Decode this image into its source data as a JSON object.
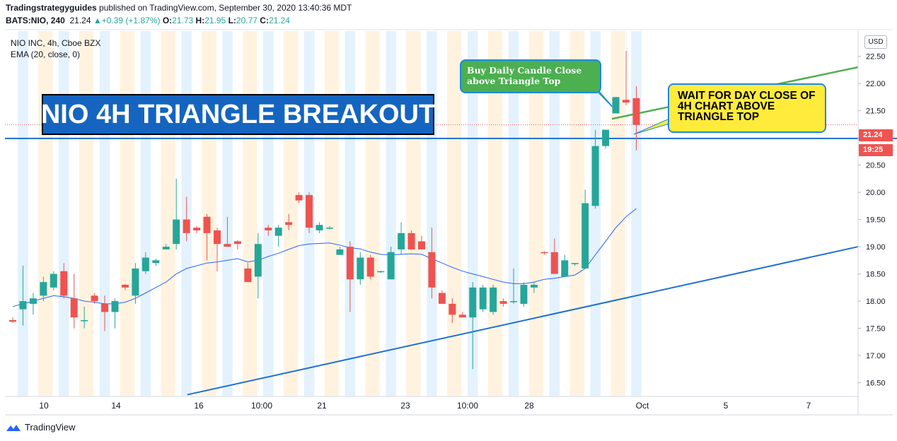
{
  "header": {
    "author": "Tradingstrategyguides",
    "published": "published on TradingView.com, September 30, 2020 13:40:36 MDT",
    "symbol": "BATS:NIO, 240",
    "last": "21.24",
    "change": "+0.39 (+1.87%)",
    "o_label": "O:",
    "o_value": "21.73",
    "h_label": "H:",
    "h_value": "21.95",
    "l_label": "L:",
    "l_value": "20.77",
    "c_label": "C:",
    "c_value": "21.24"
  },
  "legend": {
    "instrument": "NIO INC, 4h, Cboe BZX",
    "indicator": "EMA (20, close, 0)"
  },
  "annotations": {
    "title": "NIO 4H TRIANGLE BREAKOUT",
    "green_note": "Buy Daily Candle Close above Triangle Top",
    "yellow_note": "WAIT FOR DAY CLOSE OF 4H CHART ABOVE TRIANGLE TOP"
  },
  "axis": {
    "currency": "USD",
    "price_tag": "21.24",
    "time_tag": "19:25"
  },
  "footer": {
    "brand": "TradingView"
  },
  "colors": {
    "up": "#26a69a",
    "down": "#ef5350",
    "ema": "#2962ff",
    "trendline": "#1e6fd0",
    "green_line": "#4caf50",
    "session_blue": "#e3f2fd",
    "session_orange": "#fff3e0"
  },
  "chart_data": {
    "type": "candlestick",
    "y_ticks": [
      16.5,
      17.0,
      17.5,
      18.0,
      18.5,
      19.0,
      19.5,
      20.0,
      20.5,
      21.0,
      21.5,
      22.0,
      22.5
    ],
    "y_tick_labels": [
      "16.50",
      "17.00",
      "17.50",
      "18.00",
      "18.50",
      "19.00",
      "19.50",
      "20.00",
      "20.50",
      "21.00",
      "21.50",
      "22.00",
      "22.50"
    ],
    "ylim": [
      16.26,
      22.95
    ],
    "x_labels": [
      "10",
      "14",
      "16",
      "10:00",
      "21",
      "23",
      "10:00",
      "28",
      "Oct",
      "5",
      "7"
    ],
    "candles": [
      {
        "o": 17.65,
        "h": 17.7,
        "l": 17.6,
        "c": 17.62
      },
      {
        "o": 17.85,
        "h": 18.65,
        "l": 17.55,
        "c": 18.0
      },
      {
        "o": 17.95,
        "h": 18.15,
        "l": 17.75,
        "c": 18.05
      },
      {
        "o": 18.1,
        "h": 18.45,
        "l": 18.0,
        "c": 18.35
      },
      {
        "o": 18.25,
        "h": 18.55,
        "l": 18.2,
        "c": 18.5
      },
      {
        "o": 18.55,
        "h": 18.7,
        "l": 18.05,
        "c": 18.1
      },
      {
        "o": 18.05,
        "h": 18.5,
        "l": 17.5,
        "c": 17.7
      },
      {
        "o": 17.65,
        "h": 17.9,
        "l": 17.5,
        "c": 17.65
      },
      {
        "o": 18.1,
        "h": 18.15,
        "l": 17.95,
        "c": 18.0
      },
      {
        "o": 17.95,
        "h": 18.1,
        "l": 17.45,
        "c": 17.8
      },
      {
        "o": 17.8,
        "h": 18.05,
        "l": 17.5,
        "c": 18.0
      },
      {
        "o": 18.3,
        "h": 18.32,
        "l": 18.2,
        "c": 18.25
      },
      {
        "o": 18.1,
        "h": 18.7,
        "l": 17.95,
        "c": 18.6
      },
      {
        "o": 18.55,
        "h": 18.9,
        "l": 18.5,
        "c": 18.8
      },
      {
        "o": 18.7,
        "h": 18.78,
        "l": 18.65,
        "c": 18.75
      },
      {
        "o": 18.95,
        "h": 19.05,
        "l": 18.95,
        "c": 19.0
      },
      {
        "o": 19.05,
        "h": 20.25,
        "l": 18.95,
        "c": 19.5
      },
      {
        "o": 19.5,
        "h": 19.92,
        "l": 19.1,
        "c": 19.25
      },
      {
        "o": 19.35,
        "h": 19.38,
        "l": 19.25,
        "c": 19.3
      },
      {
        "o": 19.55,
        "h": 19.6,
        "l": 18.75,
        "c": 19.25
      },
      {
        "o": 19.3,
        "h": 19.35,
        "l": 18.55,
        "c": 19.05
      },
      {
        "o": 19.05,
        "h": 19.55,
        "l": 19.0,
        "c": 19.0
      },
      {
        "o": 19.1,
        "h": 19.12,
        "l": 18.95,
        "c": 19.05
      },
      {
        "o": 18.6,
        "h": 18.7,
        "l": 18.4,
        "c": 18.35
      },
      {
        "o": 18.45,
        "h": 19.25,
        "l": 18.05,
        "c": 19.05
      },
      {
        "o": 19.35,
        "h": 19.4,
        "l": 19.2,
        "c": 19.3
      },
      {
        "o": 19.2,
        "h": 19.4,
        "l": 19.0,
        "c": 19.35
      },
      {
        "o": 19.45,
        "h": 19.6,
        "l": 19.3,
        "c": 19.4
      },
      {
        "o": 19.95,
        "h": 20.0,
        "l": 19.8,
        "c": 19.85
      },
      {
        "o": 19.95,
        "h": 20.0,
        "l": 19.25,
        "c": 19.35
      },
      {
        "o": 19.3,
        "h": 19.45,
        "l": 19.25,
        "c": 19.4
      },
      {
        "o": 19.35,
        "h": 19.38,
        "l": 19.32,
        "c": 19.35
      },
      {
        "o": 18.85,
        "h": 19.0,
        "l": 18.85,
        "c": 18.95
      },
      {
        "o": 19.0,
        "h": 19.1,
        "l": 17.8,
        "c": 18.4
      },
      {
        "o": 18.4,
        "h": 18.9,
        "l": 18.3,
        "c": 18.8
      },
      {
        "o": 18.8,
        "h": 18.85,
        "l": 18.4,
        "c": 18.45
      },
      {
        "o": 18.54,
        "h": 18.56,
        "l": 18.52,
        "c": 18.55
      },
      {
        "o": 18.4,
        "h": 19.0,
        "l": 18.4,
        "c": 18.9
      },
      {
        "o": 18.95,
        "h": 19.45,
        "l": 18.85,
        "c": 19.25
      },
      {
        "o": 19.25,
        "h": 19.3,
        "l": 18.95,
        "c": 18.95
      },
      {
        "o": 19.1,
        "h": 19.2,
        "l": 18.95,
        "c": 18.95
      },
      {
        "o": 18.9,
        "h": 19.35,
        "l": 18.05,
        "c": 18.25
      },
      {
        "o": 18.15,
        "h": 18.2,
        "l": 17.95,
        "c": 17.95
      },
      {
        "o": 17.95,
        "h": 18.05,
        "l": 17.6,
        "c": 17.75
      },
      {
        "o": 17.75,
        "h": 17.8,
        "l": 17.7,
        "c": 17.7
      },
      {
        "o": 17.7,
        "h": 18.35,
        "l": 16.75,
        "c": 18.25
      },
      {
        "o": 17.85,
        "h": 18.3,
        "l": 17.8,
        "c": 18.25
      },
      {
        "o": 17.8,
        "h": 18.3,
        "l": 17.75,
        "c": 18.25
      },
      {
        "o": 18.0,
        "h": 18.05,
        "l": 17.9,
        "c": 17.95
      },
      {
        "o": 18.0,
        "h": 18.6,
        "l": 17.95,
        "c": 18.0
      },
      {
        "o": 17.95,
        "h": 18.35,
        "l": 17.9,
        "c": 18.3
      },
      {
        "o": 18.25,
        "h": 18.35,
        "l": 18.15,
        "c": 18.3
      },
      {
        "o": 18.9,
        "h": 18.92,
        "l": 18.85,
        "c": 18.88
      },
      {
        "o": 18.9,
        "h": 19.15,
        "l": 18.5,
        "c": 18.5
      },
      {
        "o": 18.45,
        "h": 18.85,
        "l": 18.45,
        "c": 18.75
      },
      {
        "o": 18.68,
        "h": 18.7,
        "l": 18.65,
        "c": 18.7
      },
      {
        "o": 18.6,
        "h": 20.05,
        "l": 18.6,
        "c": 19.8
      },
      {
        "o": 19.75,
        "h": 21.15,
        "l": 19.7,
        "c": 20.85
      },
      {
        "o": 20.85,
        "h": 21.15,
        "l": 20.8,
        "c": 21.15
      },
      {
        "o": 21.45,
        "h": 21.75,
        "l": 21.45,
        "c": 21.75
      },
      {
        "o": 21.7,
        "h": 22.6,
        "l": 21.6,
        "c": 21.65
      },
      {
        "o": 21.73,
        "h": 21.95,
        "l": 20.77,
        "c": 21.24
      }
    ],
    "ema": [
      17.9,
      17.95,
      18.0,
      18.05,
      18.1,
      18.08,
      18.05,
      18.0,
      17.98,
      17.95,
      17.95,
      17.98,
      18.05,
      18.15,
      18.25,
      18.35,
      18.5,
      18.6,
      18.65,
      18.7,
      18.72,
      18.75,
      18.78,
      18.72,
      18.75,
      18.82,
      18.88,
      18.95,
      19.02,
      19.05,
      19.06,
      19.07,
      19.03,
      18.98,
      18.96,
      18.9,
      18.86,
      18.85,
      18.86,
      18.87,
      18.86,
      18.78,
      18.7,
      18.62,
      18.55,
      18.5,
      18.45,
      18.4,
      18.35,
      18.32,
      18.32,
      18.35,
      18.4,
      18.42,
      18.45,
      18.48,
      18.6,
      18.85,
      19.1,
      19.35,
      19.55,
      19.7
    ],
    "triangle_bottom": {
      "from": 16.28,
      "to": 19.0
    },
    "triangle_top": 20.99,
    "breakout_line": {
      "from": 21.35,
      "to": 22.3
    }
  }
}
